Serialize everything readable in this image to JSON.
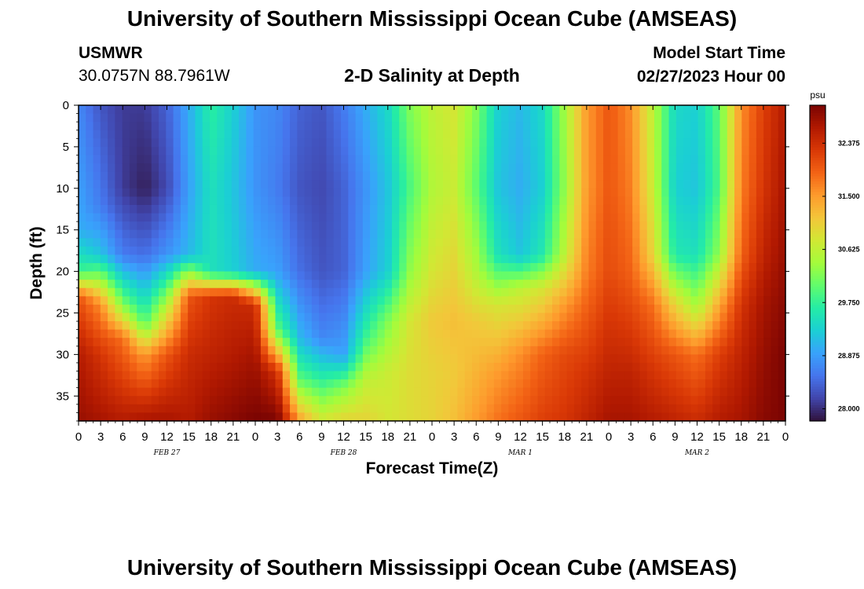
{
  "header": {
    "title": "University of Southern Mississippi Ocean Cube (AMSEAS)",
    "station": "USMWR",
    "coords": "30.0757N  88.7961W",
    "plot_title": "2-D Salinity at Depth",
    "start_label": "Model Start Time",
    "start_value": "02/27/2023 Hour 00"
  },
  "footer": {
    "title": "University of Southern Mississippi Ocean Cube (AMSEAS)"
  },
  "colors": {
    "background": "#ffffff",
    "colormap": [
      "#30123b",
      "#4145ab",
      "#4675ed",
      "#39a2fc",
      "#1bcfd4",
      "#24eca6",
      "#61fc6c",
      "#a4fc3b",
      "#d1e834",
      "#f3c63a",
      "#fe9b2d",
      "#f36315",
      "#d93806",
      "#b11901",
      "#7a0402"
    ]
  },
  "chart_data": {
    "type": "heatmap",
    "xlabel": "Forecast Time(Z)",
    "ylabel": "Depth (ft)",
    "x_unit": "hours from model start",
    "x_range": [
      0,
      96
    ],
    "x_tick_labels": [
      "0",
      "3",
      "6",
      "9",
      "12",
      "15",
      "18",
      "21",
      "0",
      "3",
      "6",
      "9",
      "12",
      "15",
      "18",
      "21",
      "0",
      "3",
      "6",
      "9",
      "12",
      "15",
      "18",
      "21",
      "0",
      "3",
      "6",
      "9",
      "12",
      "15",
      "18",
      "21",
      "0"
    ],
    "date_labels": [
      {
        "hour": 12,
        "label": "FEB 27"
      },
      {
        "hour": 36,
        "label": "FEB 28"
      },
      {
        "hour": 60,
        "label": "MAR 1"
      },
      {
        "hour": 84,
        "label": "MAR 2"
      }
    ],
    "y_range": [
      0,
      38
    ],
    "y_ticks": [
      0,
      5,
      10,
      15,
      20,
      25,
      30,
      35
    ],
    "colorbar": {
      "unit": "psu",
      "vmin": 27.8,
      "vmax": 33.0,
      "ticks": [
        "28.000",
        "28.875",
        "29.750",
        "30.625",
        "31.500",
        "32.375"
      ]
    },
    "salinity_columns": [
      {
        "hour": 0,
        "depths": [
          0,
          15,
          20,
          23,
          30,
          38
        ],
        "values": [
          28.7,
          29.0,
          29.8,
          32.0,
          32.6,
          32.8
        ]
      },
      {
        "hour": 3,
        "depths": [
          0,
          12,
          18,
          24,
          30,
          38
        ],
        "values": [
          28.3,
          28.6,
          29.2,
          31.6,
          32.3,
          32.7
        ]
      },
      {
        "hour": 6,
        "depths": [
          0,
          10,
          18,
          24,
          28,
          38
        ],
        "values": [
          28.1,
          28.1,
          28.6,
          30.2,
          31.8,
          32.6
        ]
      },
      {
        "hour": 9,
        "depths": [
          0,
          10,
          18,
          26,
          30,
          38
        ],
        "values": [
          28.1,
          27.9,
          28.5,
          29.9,
          31.5,
          32.7
        ]
      },
      {
        "hour": 12,
        "depths": [
          0,
          10,
          18,
          25,
          30,
          38
        ],
        "values": [
          28.4,
          28.2,
          28.8,
          30.8,
          32.0,
          32.7
        ]
      },
      {
        "hour": 15,
        "depths": [
          0,
          10,
          18,
          23,
          30,
          38
        ],
        "values": [
          29.0,
          28.9,
          29.1,
          32.0,
          32.4,
          32.6
        ]
      },
      {
        "hour": 18,
        "depths": [
          0,
          10,
          20,
          23,
          30,
          38
        ],
        "values": [
          29.7,
          29.5,
          29.5,
          32.3,
          32.5,
          32.8
        ]
      },
      {
        "hour": 21,
        "depths": [
          0,
          10,
          20,
          23,
          30,
          38
        ],
        "values": [
          29.3,
          29.2,
          29.3,
          32.4,
          32.6,
          32.9
        ]
      },
      {
        "hour": 24,
        "depths": [
          0,
          10,
          20,
          24,
          30,
          38
        ],
        "values": [
          28.8,
          28.8,
          29.0,
          32.4,
          32.7,
          33.0
        ]
      },
      {
        "hour": 27,
        "depths": [
          0,
          10,
          20,
          27,
          32,
          38
        ],
        "values": [
          28.7,
          28.6,
          28.9,
          30.0,
          32.3,
          33.0
        ]
      },
      {
        "hour": 30,
        "depths": [
          0,
          10,
          20,
          28,
          33,
          38
        ],
        "values": [
          28.4,
          28.3,
          28.5,
          29.1,
          30.0,
          31.5
        ]
      },
      {
        "hour": 33,
        "depths": [
          0,
          10,
          20,
          28,
          33,
          38
        ],
        "values": [
          28.3,
          28.2,
          28.3,
          28.7,
          29.7,
          30.8
        ]
      },
      {
        "hour": 36,
        "depths": [
          0,
          10,
          20,
          30,
          34,
          38
        ],
        "values": [
          28.6,
          28.4,
          28.4,
          28.9,
          30.2,
          31.0
        ]
      },
      {
        "hour": 39,
        "depths": [
          0,
          10,
          20,
          28,
          33,
          38
        ],
        "values": [
          29.0,
          28.8,
          28.9,
          29.8,
          30.6,
          31.0
        ]
      },
      {
        "hour": 42,
        "depths": [
          0,
          10,
          20,
          26,
          32,
          38
        ],
        "values": [
          29.4,
          29.2,
          29.3,
          30.2,
          30.7,
          30.8
        ]
      },
      {
        "hour": 45,
        "depths": [
          0,
          10,
          20,
          26,
          32,
          38
        ],
        "values": [
          30.2,
          29.9,
          30.3,
          30.8,
          30.9,
          30.9
        ]
      },
      {
        "hour": 48,
        "depths": [
          0,
          10,
          20,
          26,
          32,
          38
        ],
        "values": [
          30.6,
          30.5,
          30.8,
          31.1,
          31.0,
          31.0
        ]
      },
      {
        "hour": 51,
        "depths": [
          0,
          10,
          20,
          26,
          32,
          38
        ],
        "values": [
          30.8,
          30.7,
          31.0,
          31.2,
          31.1,
          31.2
        ]
      },
      {
        "hour": 54,
        "depths": [
          0,
          10,
          20,
          26,
          32,
          38
        ],
        "values": [
          30.2,
          30.0,
          30.5,
          31.1,
          31.3,
          31.5
        ]
      },
      {
        "hour": 57,
        "depths": [
          0,
          10,
          18,
          24,
          32,
          38
        ],
        "values": [
          29.3,
          29.2,
          29.5,
          30.8,
          31.5,
          31.8
        ]
      },
      {
        "hour": 60,
        "depths": [
          0,
          10,
          18,
          22,
          30,
          38
        ],
        "values": [
          29.1,
          29.0,
          29.2,
          30.6,
          31.6,
          32.0
        ]
      },
      {
        "hour": 63,
        "depths": [
          0,
          10,
          18,
          22,
          30,
          38
        ],
        "values": [
          29.4,
          29.3,
          29.6,
          30.8,
          31.9,
          32.2
        ]
      },
      {
        "hour": 66,
        "depths": [
          0,
          10,
          18,
          24,
          30,
          38
        ],
        "values": [
          30.4,
          30.3,
          30.6,
          31.5,
          32.1,
          32.3
        ]
      },
      {
        "hour": 69,
        "depths": [
          0,
          10,
          20,
          26,
          32,
          38
        ],
        "values": [
          31.5,
          31.5,
          31.7,
          32.0,
          32.3,
          32.5
        ]
      },
      {
        "hour": 72,
        "depths": [
          0,
          10,
          20,
          26,
          32,
          38
        ],
        "values": [
          32.0,
          32.0,
          32.1,
          32.3,
          32.5,
          32.7
        ]
      },
      {
        "hour": 75,
        "depths": [
          0,
          10,
          20,
          26,
          32,
          38
        ],
        "values": [
          31.6,
          31.7,
          31.9,
          32.2,
          32.5,
          32.7
        ]
      },
      {
        "hour": 78,
        "depths": [
          0,
          10,
          18,
          24,
          32,
          38
        ],
        "values": [
          30.6,
          30.7,
          31.0,
          31.8,
          32.3,
          32.6
        ]
      },
      {
        "hour": 81,
        "depths": [
          0,
          10,
          18,
          24,
          30,
          38
        ],
        "values": [
          29.4,
          29.3,
          29.6,
          31.0,
          32.0,
          32.5
        ]
      },
      {
        "hour": 84,
        "depths": [
          0,
          10,
          18,
          24,
          30,
          38
        ],
        "values": [
          29.3,
          29.2,
          29.5,
          30.4,
          31.8,
          32.4
        ]
      },
      {
        "hour": 87,
        "depths": [
          0,
          10,
          18,
          24,
          30,
          38
        ],
        "values": [
          30.0,
          29.9,
          30.3,
          31.4,
          32.2,
          32.6
        ]
      },
      {
        "hour": 90,
        "depths": [
          0,
          10,
          18,
          24,
          30,
          38
        ],
        "values": [
          31.6,
          31.7,
          31.9,
          32.3,
          32.5,
          32.7
        ]
      },
      {
        "hour": 93,
        "depths": [
          0,
          10,
          18,
          24,
          30,
          38
        ],
        "values": [
          32.2,
          32.3,
          32.5,
          32.7,
          32.8,
          32.9
        ]
      },
      {
        "hour": 96,
        "depths": [
          0,
          10,
          18,
          24,
          30,
          38
        ],
        "values": [
          32.6,
          32.7,
          32.8,
          32.9,
          33.0,
          33.0
        ]
      }
    ]
  }
}
